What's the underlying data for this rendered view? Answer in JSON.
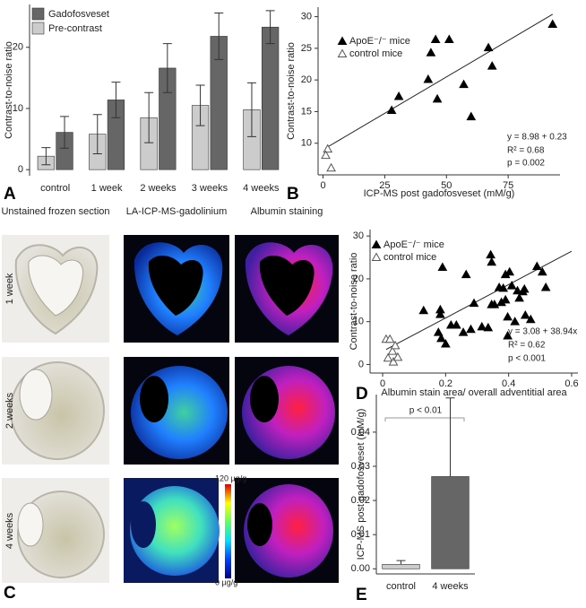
{
  "chart_data": [
    {
      "type": "bar",
      "panel": "A",
      "ylabel": "Contrast-to-noise ratio",
      "categories": [
        "control",
        "1 week",
        "2 weeks",
        "3 weeks",
        "4 weeks"
      ],
      "series": [
        {
          "name": "Gadofosveset",
          "color": "#666666",
          "values": [
            6.1,
            11.4,
            16.6,
            21.8,
            23.3
          ],
          "errors": [
            2.6,
            2.9,
            4.0,
            3.8,
            2.7
          ]
        },
        {
          "name": "Pre-contrast",
          "color": "#cccccc",
          "values": [
            2.2,
            5.8,
            8.5,
            10.5,
            9.8
          ],
          "errors": [
            1.4,
            3.2,
            4.1,
            3.3,
            4.4
          ]
        }
      ],
      "ylim": [
        -1,
        27
      ],
      "yticks": [
        0,
        10,
        20
      ],
      "legend": "upper left",
      "error_bars": "both"
    },
    {
      "type": "scatter",
      "panel": "B",
      "xlabel": "ICP-MS post gadofosveset (mM/g)",
      "ylabel": "Contrast-to-noise ratio",
      "series": [
        {
          "name": "ApoE⁻/⁻ mice",
          "marker": "filled",
          "color": "#000000",
          "x": [
            27.8,
            30.7,
            42.6,
            43.7,
            45.6,
            46.3,
            51.1,
            57,
            60,
            67,
            68.5,
            93
          ],
          "values": [
            15.2,
            17.4,
            20.1,
            24.3,
            26.4,
            17.0,
            26.4,
            19.3,
            14.2,
            25.1,
            22.2,
            28.8
          ]
        },
        {
          "name": "control mice",
          "marker": "open",
          "color": "#555555",
          "x": [
            1.9,
            1.1,
            3.3
          ],
          "values": [
            9.1,
            8.1,
            6.1
          ]
        }
      ],
      "fit": {
        "intercept": 8.98,
        "slope": 0.23
      },
      "annotations": [
        "y = 8.98 + 0.23",
        "R² = 0.68",
        "p = 0.002"
      ],
      "xlim": [
        -2,
        96
      ],
      "xticks": [
        0,
        25,
        50,
        75
      ],
      "ylim": [
        5,
        31.5
      ],
      "yticks": [
        10,
        15,
        20,
        25,
        30
      ],
      "legend": "upper left"
    },
    {
      "type": "scatter",
      "panel": "D",
      "xlabel": "Albumin stain area/ overall adventitial area",
      "ylabel": "Contrast-to-noise ratio",
      "series": [
        {
          "name": "ApoE⁻/⁻ mice",
          "marker": "filled",
          "color": "#000000",
          "x": [
            0.13,
            0.177,
            0.183,
            0.183,
            0.186,
            0.19,
            0.2,
            0.217,
            0.234,
            0.256,
            0.265,
            0.28,
            0.29,
            0.315,
            0.335,
            0.343,
            0.346,
            0.346,
            0.355,
            0.37,
            0.377,
            0.383,
            0.39,
            0.39,
            0.397,
            0.397,
            0.403,
            0.41,
            0.42,
            0.428,
            0.434,
            0.445,
            0.45,
            0.453,
            0.47,
            0.49,
            0.507,
            0.518
          ],
          "values": [
            12.6,
            7.5,
            11.7,
            12.8,
            6.1,
            22.7,
            4.8,
            9.2,
            9.2,
            7.5,
            21,
            8.2,
            14.3,
            8.8,
            8.6,
            25.6,
            23.9,
            14,
            14,
            18,
            14.5,
            17.8,
            21,
            15.1,
            11.1,
            6.7,
            21.6,
            18.4,
            10,
            17.2,
            15.5,
            17,
            17.6,
            11.5,
            10.5,
            22.9,
            21.6,
            18
          ]
        },
        {
          "name": "control mice",
          "marker": "open",
          "color": "#555555",
          "x": [
            0.011,
            0.023,
            0.031,
            0.04,
            0.017,
            0.034,
            0.048
          ],
          "values": [
            5.9,
            5.9,
            3.1,
            4.4,
            1.5,
            0.6,
            1.7
          ]
        }
      ],
      "fit": {
        "intercept": 3.08,
        "slope": 38.94
      },
      "annotations": [
        "y = 3.08 + 38.94x",
        "R² = 0.62",
        "p < 0.001"
      ],
      "xlim": [
        -0.04,
        0.62
      ],
      "xticks": [
        0,
        0.2,
        0.4,
        0.6
      ],
      "ylim": [
        -2,
        31.5
      ],
      "yticks": [
        0,
        10,
        20,
        30
      ],
      "legend": "upper left"
    },
    {
      "type": "bar",
      "panel": "E",
      "ylabel": "ICP-MS post gadofosveset (mM/g)",
      "categories": [
        "control",
        "4 weeks"
      ],
      "values": [
        0.0013,
        0.027
      ],
      "errors": [
        0.0011,
        0.023
      ],
      "colors": [
        "#cccccc",
        "#666666"
      ],
      "annotations": [
        "p < 0.01"
      ],
      "ylim": [
        -0.0015,
        0.051
      ],
      "yticks": [
        {
          "value": 0,
          "label": "0.00"
        },
        {
          "value": 0.01,
          "label": "0.01"
        },
        {
          "value": 0.02,
          "label": "0.02"
        },
        {
          "value": 0.03,
          "label": "0.03"
        },
        {
          "value": 0.04,
          "label": "0.04"
        }
      ],
      "error_bars": "upper"
    }
  ],
  "panel_c": {
    "panel": "C",
    "columns": [
      "Unstained frozen section",
      "LA-ICP-MS-gadolinium",
      "Albumin staining"
    ],
    "rows": [
      "1 week",
      "2 weeks",
      "4 weeks"
    ],
    "colorbar": {
      "max_label": "120 µg/g",
      "min_label": "0 µg/g"
    }
  }
}
